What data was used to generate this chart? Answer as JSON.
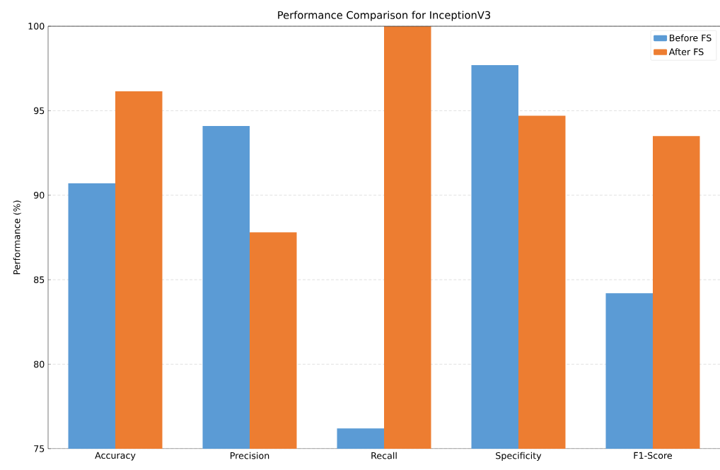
{
  "chart_data": {
    "type": "bar",
    "title": "Performance Comparison for InceptionV3",
    "ylabel": "Performance (%)",
    "categories": [
      "Accuracy",
      "Precision",
      "Recall",
      "Specificity",
      "F1-Score"
    ],
    "series": [
      {
        "name": "Before FS",
        "color": "#5b9bd5",
        "values": [
          90.7,
          94.1,
          76.2,
          97.7,
          84.2
        ]
      },
      {
        "name": "After FS",
        "color": "#ed7d31",
        "values": [
          96.15,
          87.8,
          100,
          94.7,
          93.5
        ]
      }
    ],
    "ylim": [
      75,
      100
    ],
    "yticks": [
      75,
      80,
      85,
      90,
      95,
      100
    ],
    "grid": "y",
    "legend": "top right"
  }
}
